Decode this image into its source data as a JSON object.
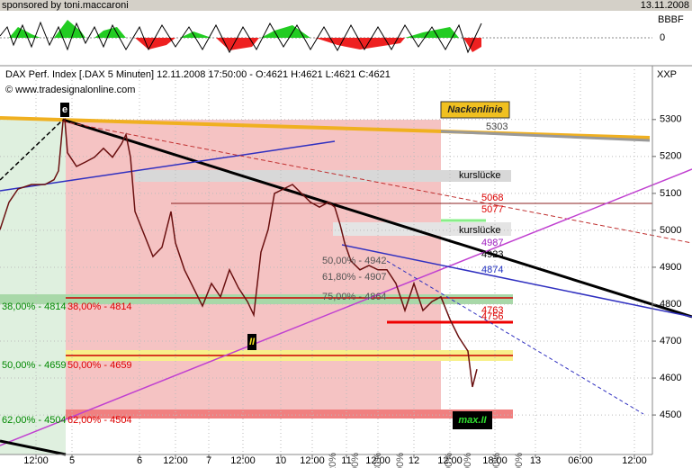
{
  "header": {
    "sponsor": "sponsored by toni.maccaroni",
    "date": "13.11.2008",
    "osc_label": "BBBF",
    "osc_zero": "0"
  },
  "chart_data": {
    "type": "line",
    "title": "DAX Perf. Index [.DAX  5 Minuten] 12.11.2008 17:50:00 - O:4621 H:4621 L:4621 C:4621",
    "subtitle": "© www.tradesignalonline.com",
    "axis_label": "XXP",
    "color": "#6a1010",
    "x": [
      0,
      10,
      20,
      35,
      50,
      60,
      65,
      70,
      72,
      75,
      85,
      95,
      105,
      115,
      125,
      135,
      140,
      145,
      150,
      160,
      170,
      180,
      190,
      195,
      205,
      215,
      225,
      235,
      245,
      255,
      265,
      275,
      282,
      290,
      298,
      305,
      315,
      325,
      335,
      345,
      355,
      365,
      372,
      378,
      383,
      390,
      400,
      410,
      420,
      430,
      440,
      450,
      460,
      470,
      480,
      490,
      500,
      510,
      520,
      525,
      530
    ],
    "values": [
      5002,
      5076,
      5112,
      5124,
      5124,
      5137,
      5161,
      5295,
      5300,
      5210,
      5173,
      5185,
      5198,
      5222,
      5198,
      5234,
      5259,
      5198,
      5051,
      4990,
      4929,
      4954,
      5051,
      4966,
      4893,
      4844,
      4795,
      4856,
      4820,
      4893,
      4844,
      4807,
      4771,
      4941,
      5002,
      5100,
      5112,
      5124,
      5100,
      5076,
      5063,
      5076,
      5063,
      5015,
      4966,
      4917,
      4893,
      4905,
      4893,
      4893,
      4856,
      4783,
      4856,
      4783,
      4807,
      4820,
      4759,
      4710,
      4673,
      4576,
      4624
    ],
    "xlim": [
      0,
      725
    ],
    "xticks": [
      {
        "value": 40,
        "label": "12:00"
      },
      {
        "value": 80,
        "label": "5"
      },
      {
        "value": 155,
        "label": "6"
      },
      {
        "value": 195,
        "label": "12:00"
      },
      {
        "value": 232,
        "label": "7"
      },
      {
        "value": 270,
        "label": "12:00"
      },
      {
        "value": 312,
        "label": "10"
      },
      {
        "value": 347,
        "label": "12:00"
      },
      {
        "value": 385,
        "label": "11"
      },
      {
        "value": 420,
        "label": "12:00"
      },
      {
        "value": 460,
        "label": "12"
      },
      {
        "value": 500,
        "label": "12:00"
      },
      {
        "value": 550,
        "label": "18:00"
      },
      {
        "value": 595,
        "label": "13"
      },
      {
        "value": 645,
        "label": "06:00"
      },
      {
        "value": 705,
        "label": "12:00"
      }
    ],
    "ylim": [
      4393,
      5436
    ],
    "yticks": [
      4500,
      4600,
      4700,
      4800,
      4900,
      5000,
      5100,
      5200,
      5300
    ],
    "grid": true,
    "annotations": [
      "e",
      "Nackenlinie",
      "5303",
      "kurslücke",
      "kurslücke",
      "5068",
      "5077",
      "4987",
      "4923",
      "4874",
      "4763",
      "4756",
      "38,00% - 4814",
      "38,00% - 4814",
      "50,00% - 4659",
      "50,00% - 4659",
      "62,00% - 4504",
      "62,00% - 4504",
      "II",
      "max.II",
      "50,00% - 4942",
      "61,80% - 4907",
      "75,00% - 4864",
      "38,20%",
      "50,00%",
      "61,80%",
      "75,00%",
      "100,00%",
      "125,00%",
      "138,00%",
      "150,00%"
    ]
  }
}
